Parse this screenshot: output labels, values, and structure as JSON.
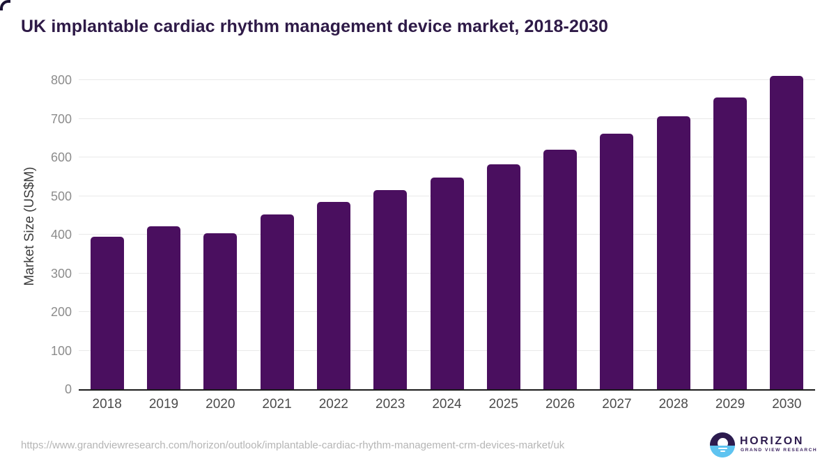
{
  "chart_data": {
    "type": "bar",
    "title": "UK implantable cardiac rhythm management device market, 2018-2030",
    "categories": [
      "2018",
      "2019",
      "2020",
      "2021",
      "2022",
      "2023",
      "2024",
      "2025",
      "2026",
      "2027",
      "2028",
      "2029",
      "2030"
    ],
    "values": [
      395.4,
      421.9,
      404.1,
      452.9,
      484.2,
      514.9,
      547.4,
      581.6,
      620.0,
      661.5,
      706.6,
      755.6,
      810.3
    ],
    "xlabel": "",
    "ylabel": "Market Size (US$M)",
    "ylim": [
      0,
      800
    ],
    "yticks": [
      0,
      100,
      200,
      300,
      400,
      500,
      600,
      700,
      800
    ],
    "grid": true,
    "legend": false,
    "bar_color": "#4a0f5f"
  },
  "footer": {
    "source_url": "https://www.grandviewresearch.com/horizon/outlook/implantable-cardiac-rhythm-management-crm-devices-market/uk",
    "logo": {
      "name": "HORIZON",
      "subtitle": "GRAND VIEW RESEARCH",
      "brand_purple": "#2d1b4e",
      "brand_blue": "#5ec3f0"
    }
  }
}
